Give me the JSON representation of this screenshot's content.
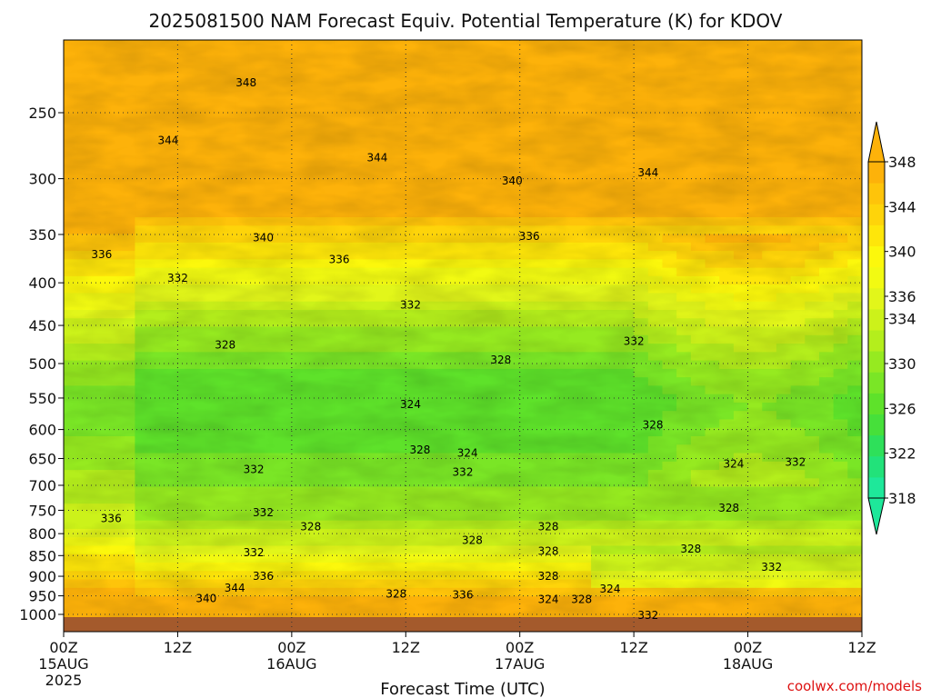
{
  "chart_data": {
    "type": "heatmap",
    "title": "2025081500 NAM Forecast Equiv. Potential Temperature (K) for KDOV",
    "xlabel": "Forecast Time (UTC)",
    "ylabel": "",
    "watermark": "coolwx.com/models",
    "x_range_hours": [
      0,
      84
    ],
    "x_ticks": [
      {
        "hour": 0,
        "label": "00Z",
        "date": "15AUG",
        "year": "2025"
      },
      {
        "hour": 12,
        "label": "12Z",
        "date": "",
        "year": ""
      },
      {
        "hour": 24,
        "label": "00Z",
        "date": "16AUG",
        "year": ""
      },
      {
        "hour": 36,
        "label": "12Z",
        "date": "",
        "year": ""
      },
      {
        "hour": 48,
        "label": "00Z",
        "date": "17AUG",
        "year": ""
      },
      {
        "hour": 60,
        "label": "12Z",
        "date": "",
        "year": ""
      },
      {
        "hour": 72,
        "label": "00Z",
        "date": "18AUG",
        "year": ""
      },
      {
        "hour": 84,
        "label": "12Z",
        "date": "",
        "year": ""
      }
    ],
    "y_range_hpa": [
      1020,
      200
    ],
    "y_ticks": [
      "250",
      "300",
      "350",
      "400",
      "450",
      "500",
      "550",
      "600",
      "650",
      "700",
      "750",
      "800",
      "850",
      "900",
      "950",
      "1000"
    ],
    "grid": true,
    "colorbar": {
      "placement": "right",
      "levels": [
        318,
        320,
        322,
        324,
        326,
        328,
        330,
        332,
        334,
        336,
        338,
        340,
        342,
        344,
        346,
        348
      ],
      "labels": [
        "318",
        "322",
        "326",
        "330",
        "334",
        "336",
        "340",
        "344",
        "348"
      ],
      "colors": [
        "#1ee89a",
        "#22e27a",
        "#2ee05a",
        "#46e03a",
        "#5ee22a",
        "#7ae626",
        "#96ea20",
        "#b4ee1c",
        "#ccf21a",
        "#e2f61a",
        "#f2fa12",
        "#fcf80c",
        "#fee60a",
        "#fed40a",
        "#fec40a",
        "#fdb20a"
      ]
    },
    "contour_labels": [
      {
        "text": "348",
        "hour": 19.2,
        "hpa": 230
      },
      {
        "text": "344",
        "hour": 11.0,
        "hpa": 270
      },
      {
        "text": "344",
        "hour": 33.0,
        "hpa": 283
      },
      {
        "text": "344",
        "hour": 61.5,
        "hpa": 295
      },
      {
        "text": "340",
        "hour": 47.2,
        "hpa": 302
      },
      {
        "text": "340",
        "hour": 21.0,
        "hpa": 353
      },
      {
        "text": "336",
        "hour": 49.0,
        "hpa": 352
      },
      {
        "text": "336",
        "hour": 29.0,
        "hpa": 375
      },
      {
        "text": "336",
        "hour": 4.0,
        "hpa": 370
      },
      {
        "text": "332",
        "hour": 12.0,
        "hpa": 395
      },
      {
        "text": "332",
        "hour": 36.5,
        "hpa": 425
      },
      {
        "text": "332",
        "hour": 60.0,
        "hpa": 470
      },
      {
        "text": "328",
        "hour": 17.0,
        "hpa": 475
      },
      {
        "text": "328",
        "hour": 46.0,
        "hpa": 495
      },
      {
        "text": "324",
        "hour": 36.5,
        "hpa": 560
      },
      {
        "text": "328",
        "hour": 62.0,
        "hpa": 592
      },
      {
        "text": "328",
        "hour": 37.5,
        "hpa": 635
      },
      {
        "text": "324",
        "hour": 42.5,
        "hpa": 640
      },
      {
        "text": "332",
        "hour": 42.0,
        "hpa": 675
      },
      {
        "text": "324",
        "hour": 70.5,
        "hpa": 660
      },
      {
        "text": "332",
        "hour": 77.0,
        "hpa": 657
      },
      {
        "text": "332",
        "hour": 20.0,
        "hpa": 670
      },
      {
        "text": "328",
        "hour": 70.0,
        "hpa": 745
      },
      {
        "text": "332",
        "hour": 21.0,
        "hpa": 755
      },
      {
        "text": "336",
        "hour": 5.0,
        "hpa": 767
      },
      {
        "text": "328",
        "hour": 26.0,
        "hpa": 785
      },
      {
        "text": "328",
        "hour": 51.0,
        "hpa": 785
      },
      {
        "text": "328",
        "hour": 43.0,
        "hpa": 815
      },
      {
        "text": "328",
        "hour": 51.0,
        "hpa": 840
      },
      {
        "text": "328",
        "hour": 66.0,
        "hpa": 835
      },
      {
        "text": "332",
        "hour": 20.0,
        "hpa": 843
      },
      {
        "text": "332",
        "hour": 74.5,
        "hpa": 878
      },
      {
        "text": "336",
        "hour": 21.0,
        "hpa": 900
      },
      {
        "text": "328",
        "hour": 51.0,
        "hpa": 900
      },
      {
        "text": "344",
        "hour": 18.0,
        "hpa": 930
      },
      {
        "text": "328",
        "hour": 35.0,
        "hpa": 945
      },
      {
        "text": "336",
        "hour": 42.0,
        "hpa": 948
      },
      {
        "text": "324",
        "hour": 57.5,
        "hpa": 932
      },
      {
        "text": "340",
        "hour": 15.0,
        "hpa": 957
      },
      {
        "text": "324",
        "hour": 51.0,
        "hpa": 960
      },
      {
        "text": "328",
        "hour": 54.5,
        "hpa": 960
      },
      {
        "text": "332",
        "hour": 61.5,
        "hpa": 1002
      }
    ]
  }
}
